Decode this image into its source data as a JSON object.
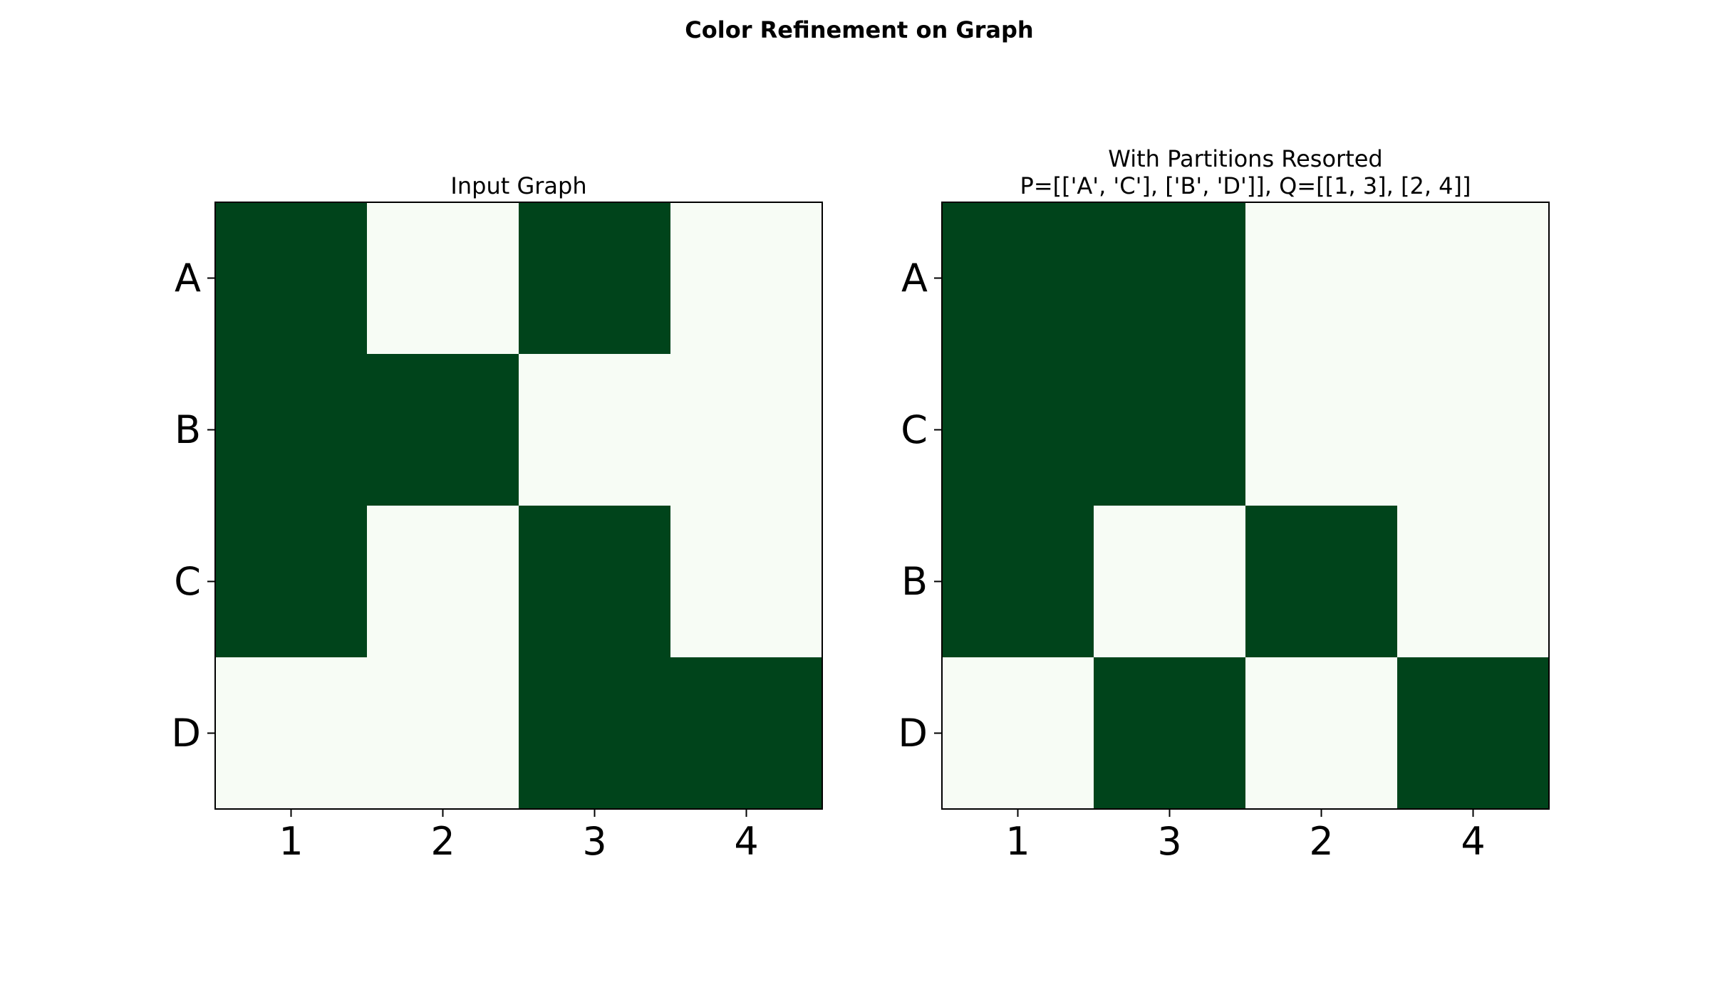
{
  "figure": {
    "title": "Color Refinement on Graph"
  },
  "colors": {
    "on": "#00441b",
    "off": "#f7fcf5",
    "frame": "#000000"
  },
  "chart_data": [
    {
      "type": "heatmap",
      "title": "Input Graph",
      "title_lines": [
        "Input Graph"
      ],
      "rows": [
        "A",
        "B",
        "C",
        "D"
      ],
      "cols": [
        "1",
        "2",
        "3",
        "4"
      ],
      "values": [
        [
          1,
          0,
          1,
          0
        ],
        [
          1,
          1,
          0,
          0
        ],
        [
          1,
          0,
          1,
          0
        ],
        [
          0,
          0,
          1,
          1
        ]
      ],
      "xlabel": "",
      "ylabel": "",
      "grid": false
    },
    {
      "type": "heatmap",
      "title": "With Partitions Resorted P=[['A', 'C'], ['B', 'D']], Q=[[1, 3], [2, 4]]",
      "title_lines": [
        "With Partitions Resorted",
        "P=[['A', 'C'], ['B', 'D']], Q=[[1, 3], [2, 4]]"
      ],
      "rows": [
        "A",
        "C",
        "B",
        "D"
      ],
      "cols": [
        "1",
        "3",
        "2",
        "4"
      ],
      "values": [
        [
          1,
          1,
          0,
          0
        ],
        [
          1,
          1,
          0,
          0
        ],
        [
          1,
          0,
          1,
          0
        ],
        [
          0,
          1,
          0,
          1
        ]
      ],
      "xlabel": "",
      "ylabel": "",
      "grid": false
    }
  ]
}
